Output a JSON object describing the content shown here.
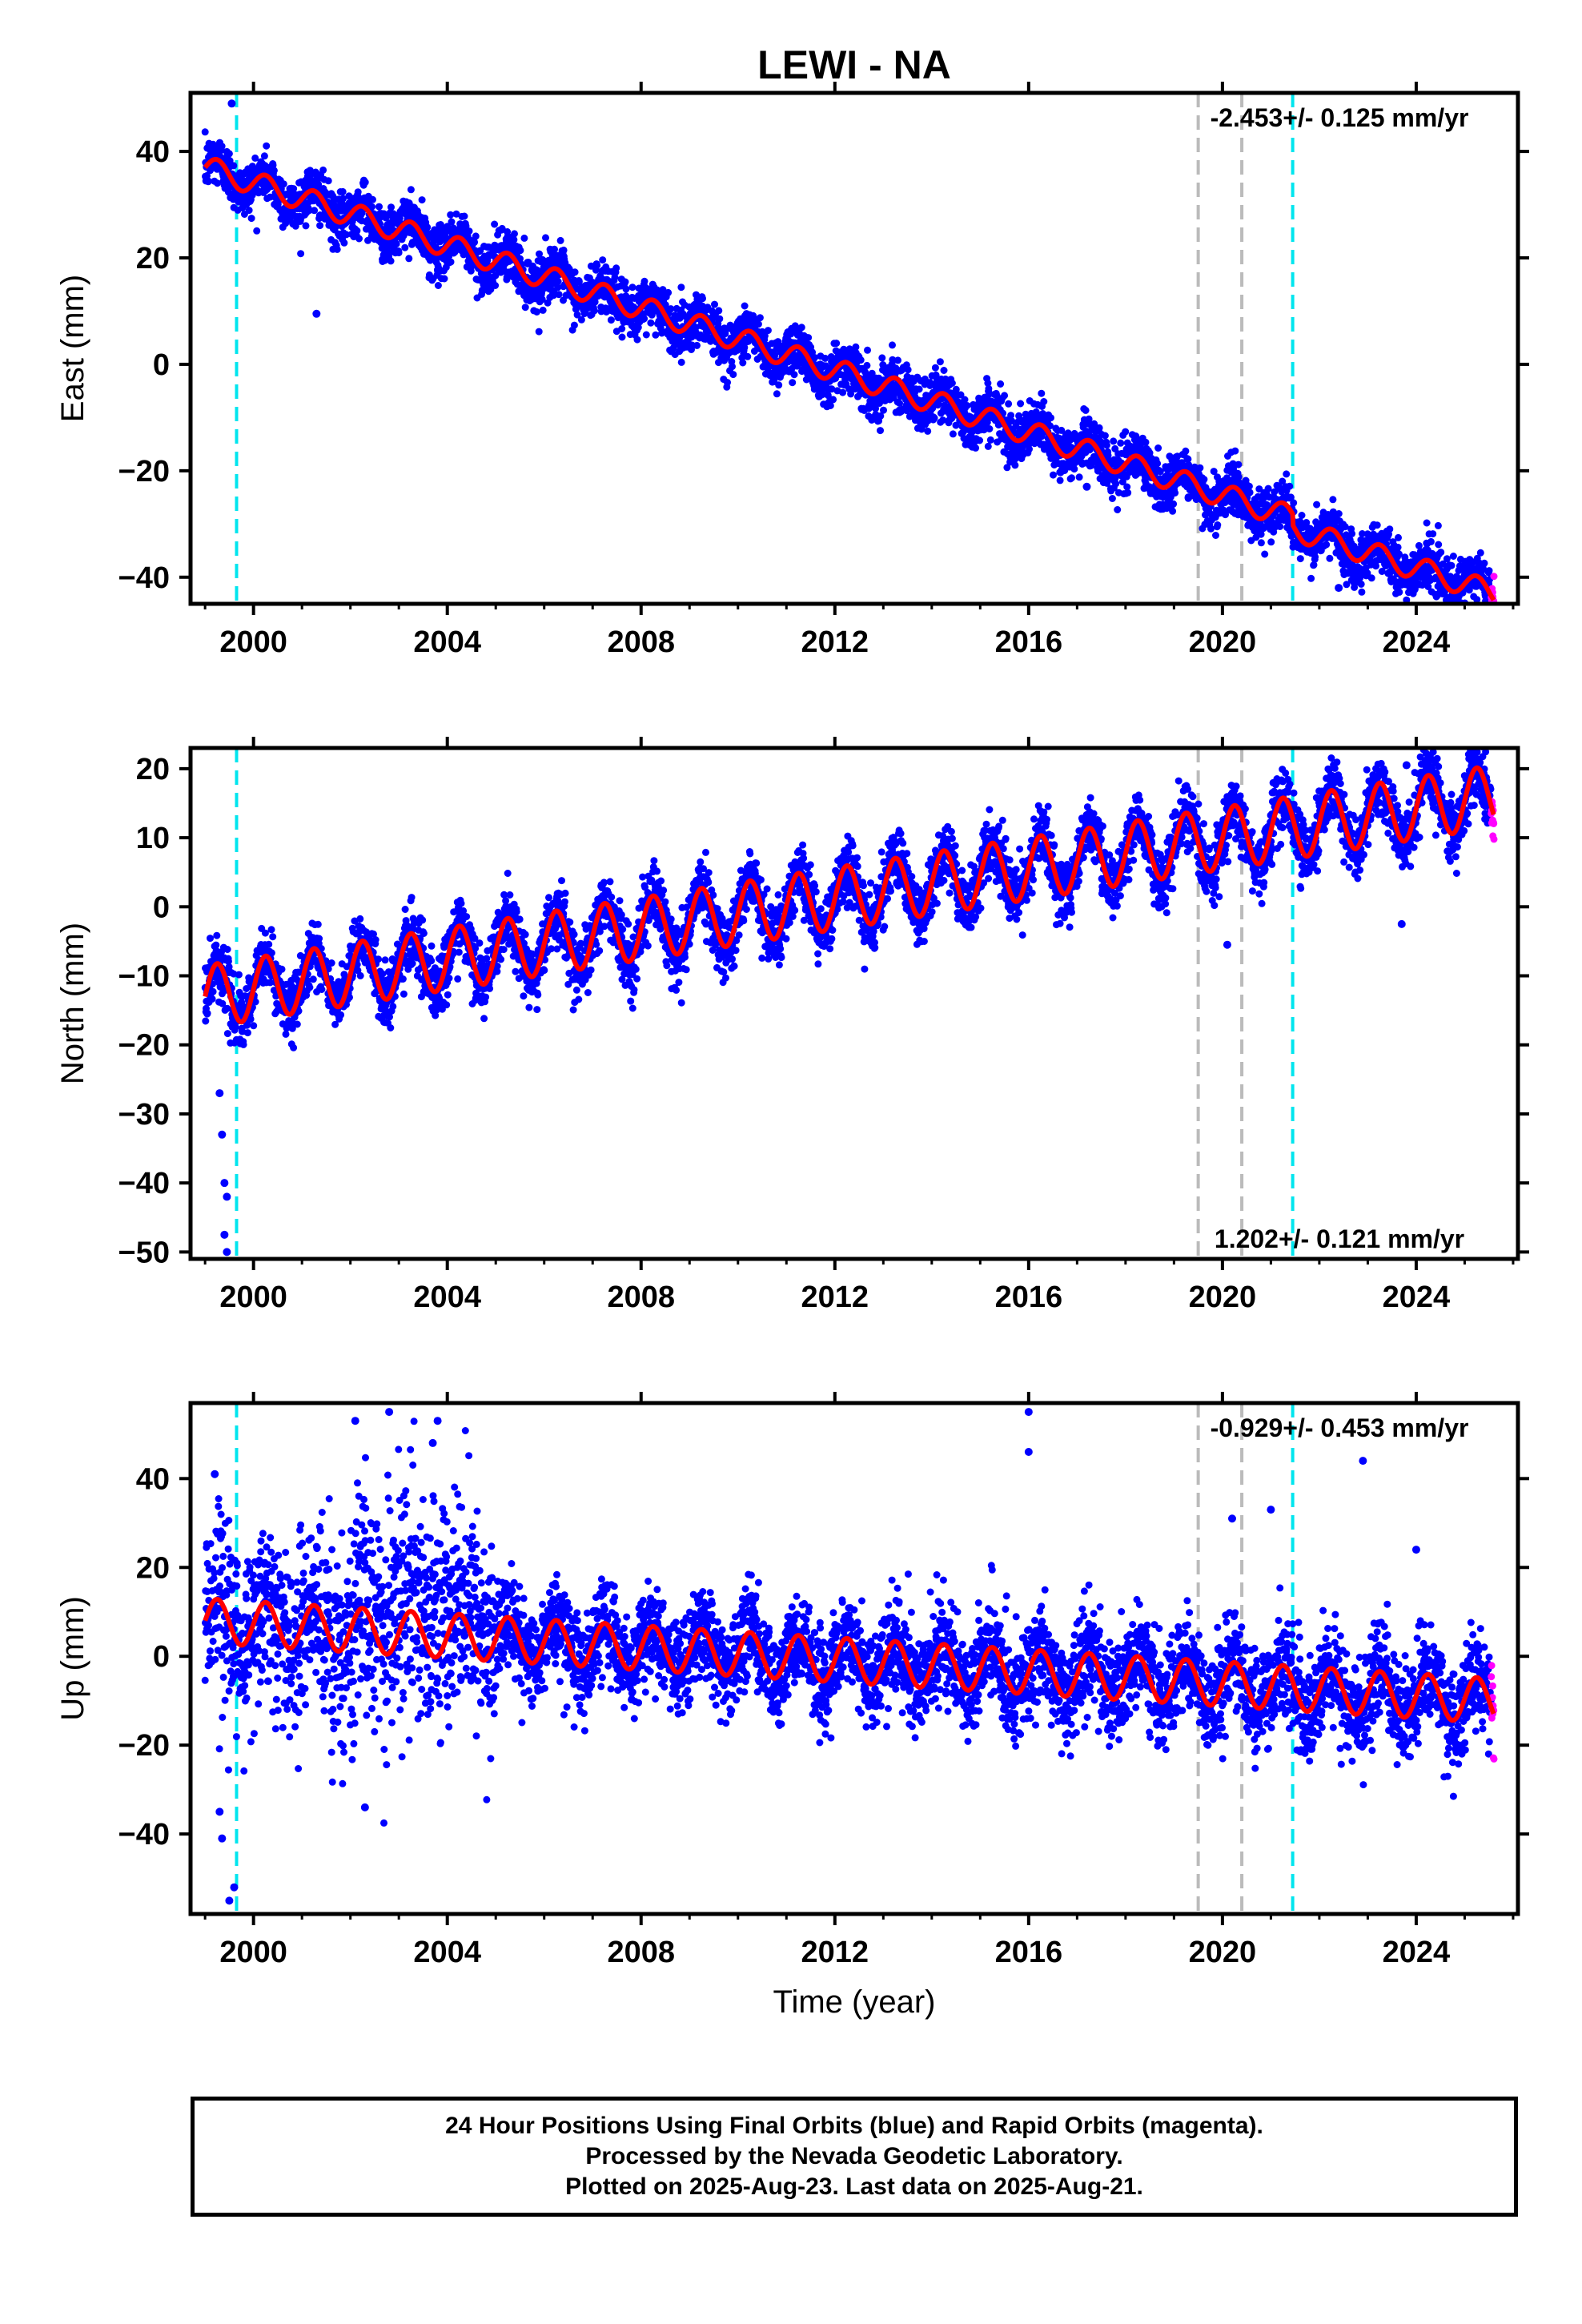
{
  "chart_data": {
    "title": "LEWI - NA",
    "type": "scatter",
    "xlabel": "Time (year)",
    "xlim": [
      1998.7,
      2026.1
    ],
    "x_ticks": [
      2000,
      2004,
      2008,
      2012,
      2016,
      2020,
      2024
    ],
    "event_lines": {
      "cyan_dashed": [
        1999.65,
        2021.45
      ],
      "gray_dashed": [
        2019.5,
        2020.4
      ]
    },
    "legend_colors": {
      "final_orbits": "#0000ff",
      "rapid_orbits": "#ff00ff",
      "model": "#ff0000",
      "event_cyan": "#00e5ee",
      "event_gray": "#bbbbbb"
    },
    "panels": [
      {
        "ylabel": "East (mm)",
        "ylim": [
          -45,
          51
        ],
        "y_ticks": [
          -40,
          -20,
          0,
          20,
          40
        ],
        "rate_text": "-2.453+/- 0.125 mm/yr",
        "rate_position": "top-right",
        "model": {
          "start_year": 1999.0,
          "end_year": 2025.6,
          "value_at_start": 37,
          "value_at_end": -41,
          "annual_amplitude": 2.2,
          "offsets": [
            {
              "year": 2021.45,
              "step": -2
            }
          ]
        },
        "scatter_noise": 2.4,
        "outliers": [
          [
            1999.55,
            49
          ],
          [
            2001.3,
            9.5
          ],
          [
            2017.2,
            -23
          ],
          [
            2019.3,
            -25
          ],
          [
            2021.5,
            -30
          ],
          [
            2022.4,
            -42
          ]
        ]
      },
      {
        "ylabel": "North (mm)",
        "ylim": [
          -51,
          23
        ],
        "y_ticks": [
          -50,
          -40,
          -30,
          -20,
          -10,
          0,
          10,
          20
        ],
        "rate_text": "1.202+/- 0.121 mm/yr",
        "rate_position": "bottom-right",
        "model": {
          "start_year": 1999.0,
          "end_year": 2025.6,
          "value_at_start": -13,
          "value_at_end": 16,
          "annual_amplitude": 4.5,
          "offsets": []
        },
        "scatter_noise": 2.2,
        "outliers": [
          [
            1999.3,
            -27
          ],
          [
            1999.35,
            -33
          ],
          [
            1999.4,
            -40
          ],
          [
            1999.45,
            -42
          ],
          [
            1999.4,
            -47.5
          ],
          [
            1999.45,
            -50
          ],
          [
            2020.1,
            -5.5
          ],
          [
            2023.7,
            -2.5
          ],
          [
            2023.8,
            20.5
          ]
        ]
      },
      {
        "ylabel": "Up (mm)",
        "ylim": [
          -58,
          57
        ],
        "y_ticks": [
          -40,
          -20,
          0,
          20,
          40
        ],
        "rate_text": "-0.929+/- 0.453 mm/yr",
        "rate_position": "top-right",
        "model": {
          "start_year": 1999.0,
          "end_year": 2025.6,
          "value_at_start": 8,
          "value_at_end": -10,
          "annual_amplitude": 5,
          "offsets": []
        },
        "scatter_noise": 5.5,
        "outliers": [
          [
            1999.2,
            41
          ],
          [
            1999.3,
            -35
          ],
          [
            1999.35,
            -41
          ],
          [
            1999.5,
            -55
          ],
          [
            1999.6,
            -52
          ],
          [
            2002.1,
            53
          ],
          [
            2002.3,
            -34
          ],
          [
            2002.8,
            55
          ],
          [
            2003.8,
            53
          ],
          [
            2003.7,
            48
          ],
          [
            2016.0,
            55
          ],
          [
            2016.0,
            46
          ],
          [
            2020.2,
            31
          ],
          [
            2021.0,
            33
          ],
          [
            2022.9,
            44
          ],
          [
            2024.0,
            24
          ]
        ]
      }
    ],
    "footer_lines": [
      "24 Hour Positions Using Final Orbits (blue) and Rapid Orbits (magenta).",
      "Processed by the Nevada Geodetic Laboratory.",
      "Plotted on 2025-Aug-23. Last data on 2025-Aug-21."
    ]
  }
}
